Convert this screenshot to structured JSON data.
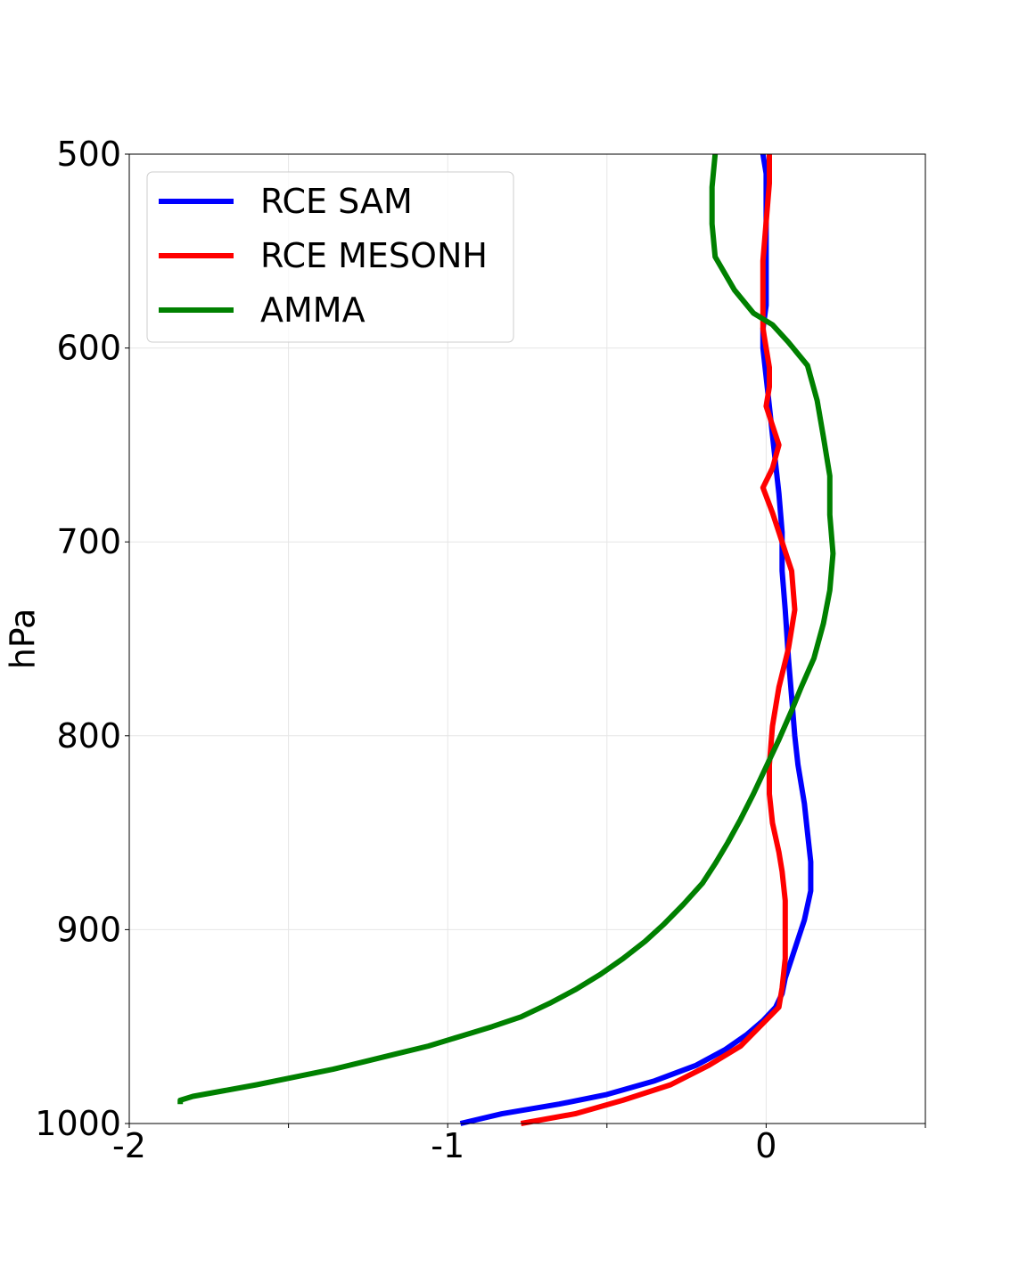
{
  "chart_data": {
    "type": "line",
    "title": "",
    "xlabel": "",
    "ylabel": "hPa",
    "xlim": [
      -2,
      0.5
    ],
    "ylim": [
      1000,
      500
    ],
    "y_inverted": true,
    "grid": true,
    "legend_position": "upper-left",
    "x_ticks": [
      -2,
      -1.5,
      -1,
      -0.5,
      0,
      0.5
    ],
    "x_tick_labels": [
      "-2",
      "",
      "-1",
      "",
      "0",
      ""
    ],
    "y_ticks": [
      500,
      600,
      700,
      800,
      900,
      1000
    ],
    "y_tick_labels": [
      "500",
      "600",
      "700",
      "800",
      "900",
      "1000"
    ],
    "series": [
      {
        "name": "RCE SAM",
        "color": "#0000ff",
        "points": [
          [
            -0.96,
            1000
          ],
          [
            -0.83,
            995
          ],
          [
            -0.65,
            990
          ],
          [
            -0.5,
            985
          ],
          [
            -0.35,
            978
          ],
          [
            -0.22,
            970
          ],
          [
            -0.13,
            962
          ],
          [
            -0.06,
            954
          ],
          [
            -0.01,
            947
          ],
          [
            0.03,
            940
          ],
          [
            0.05,
            933
          ],
          [
            0.06,
            925
          ],
          [
            0.08,
            915
          ],
          [
            0.1,
            905
          ],
          [
            0.12,
            895
          ],
          [
            0.14,
            880
          ],
          [
            0.14,
            865
          ],
          [
            0.13,
            850
          ],
          [
            0.12,
            835
          ],
          [
            0.1,
            815
          ],
          [
            0.09,
            800
          ],
          [
            0.08,
            780
          ],
          [
            0.07,
            760
          ],
          [
            0.06,
            735
          ],
          [
            0.05,
            715
          ],
          [
            0.05,
            695
          ],
          [
            0.04,
            675
          ],
          [
            0.03,
            660
          ],
          [
            0.02,
            645
          ],
          [
            0.01,
            630
          ],
          [
            0.0,
            615
          ],
          [
            -0.01,
            600
          ],
          [
            -0.01,
            590
          ],
          [
            0.0,
            578
          ],
          [
            0.0,
            560
          ],
          [
            0.0,
            540
          ],
          [
            0.0,
            520
          ],
          [
            0.0,
            510
          ],
          [
            -0.01,
            500
          ]
        ]
      },
      {
        "name": "RCE MESONH",
        "color": "#ff0000",
        "points": [
          [
            -0.77,
            1000
          ],
          [
            -0.6,
            995
          ],
          [
            -0.45,
            988
          ],
          [
            -0.3,
            980
          ],
          [
            -0.18,
            970
          ],
          [
            -0.08,
            960
          ],
          [
            -0.02,
            950
          ],
          [
            0.04,
            940
          ],
          [
            0.05,
            930
          ],
          [
            0.06,
            915
          ],
          [
            0.06,
            900
          ],
          [
            0.06,
            885
          ],
          [
            0.05,
            870
          ],
          [
            0.04,
            860
          ],
          [
            0.02,
            845
          ],
          [
            0.01,
            830
          ],
          [
            0.01,
            815
          ],
          [
            0.02,
            795
          ],
          [
            0.04,
            775
          ],
          [
            0.07,
            755
          ],
          [
            0.09,
            735
          ],
          [
            0.08,
            715
          ],
          [
            0.06,
            705
          ],
          [
            0.04,
            695
          ],
          [
            0.02,
            685
          ],
          [
            -0.01,
            672
          ],
          [
            0.02,
            662
          ],
          [
            0.04,
            650
          ],
          [
            0.02,
            640
          ],
          [
            0.0,
            630
          ],
          [
            0.01,
            620
          ],
          [
            0.01,
            610
          ],
          [
            0.0,
            600
          ],
          [
            -0.01,
            590
          ],
          [
            -0.01,
            575
          ],
          [
            -0.01,
            555
          ],
          [
            0.0,
            535
          ],
          [
            0.01,
            515
          ],
          [
            0.01,
            500
          ]
        ]
      },
      {
        "name": "AMMA",
        "color": "#008000",
        "points": [
          [
            -1.84,
            990
          ],
          [
            -1.84,
            988
          ],
          [
            -1.8,
            986
          ],
          [
            -1.7,
            983
          ],
          [
            -1.6,
            980
          ],
          [
            -1.48,
            976
          ],
          [
            -1.36,
            972
          ],
          [
            -1.26,
            968
          ],
          [
            -1.16,
            964
          ],
          [
            -1.06,
            960
          ],
          [
            -0.96,
            955
          ],
          [
            -0.86,
            950
          ],
          [
            -0.77,
            945
          ],
          [
            -0.68,
            938
          ],
          [
            -0.6,
            931
          ],
          [
            -0.52,
            923
          ],
          [
            -0.45,
            915
          ],
          [
            -0.38,
            906
          ],
          [
            -0.32,
            897
          ],
          [
            -0.26,
            887
          ],
          [
            -0.2,
            876
          ],
          [
            -0.16,
            866
          ],
          [
            -0.12,
            855
          ],
          [
            -0.08,
            843
          ],
          [
            -0.04,
            830
          ],
          [
            0.0,
            816
          ],
          [
            0.04,
            802
          ],
          [
            0.08,
            787
          ],
          [
            0.11,
            775
          ],
          [
            0.15,
            760
          ],
          [
            0.18,
            742
          ],
          [
            0.2,
            725
          ],
          [
            0.21,
            706
          ],
          [
            0.2,
            686
          ],
          [
            0.2,
            666
          ],
          [
            0.18,
            646
          ],
          [
            0.16,
            627
          ],
          [
            0.13,
            609
          ],
          [
            0.07,
            597
          ],
          [
            0.02,
            588
          ],
          [
            -0.04,
            582
          ],
          [
            -0.1,
            570
          ],
          [
            -0.16,
            553
          ],
          [
            -0.17,
            536
          ],
          [
            -0.17,
            517
          ],
          [
            -0.16,
            500
          ]
        ]
      }
    ]
  }
}
